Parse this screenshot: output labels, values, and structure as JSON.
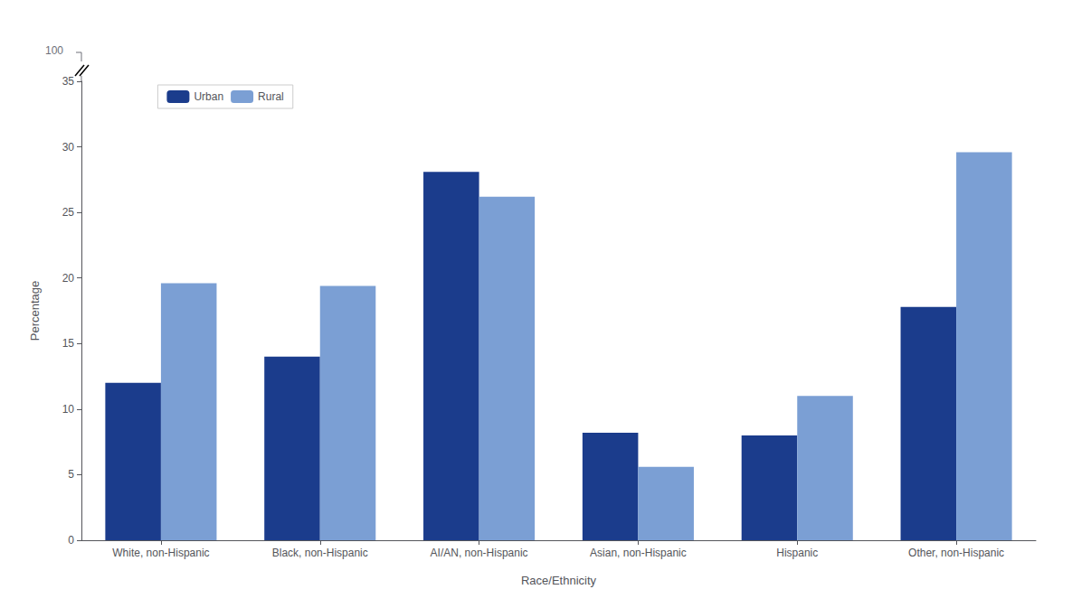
{
  "chart_data": {
    "type": "bar",
    "categories": [
      "White, non-Hispanic",
      "Black, non-Hispanic",
      "AI/AN, non-Hispanic",
      "Asian, non-Hispanic",
      "Hispanic",
      "Other, non-Hispanic"
    ],
    "series": [
      {
        "name": "Urban",
        "color": "#1B3C8C",
        "values": [
          12.0,
          14.0,
          28.1,
          8.2,
          8.0,
          17.8
        ]
      },
      {
        "name": "Rural",
        "color": "#7B9FD4",
        "values": [
          19.6,
          19.4,
          26.2,
          5.6,
          11.0,
          29.6
        ]
      }
    ],
    "xlabel": "Race/Ethnicity",
    "ylabel": "Percentage",
    "ylim": [
      0,
      35
    ],
    "yticks": [
      0,
      5,
      10,
      15,
      20,
      25,
      30,
      35
    ],
    "grid": false,
    "legend": "upper left",
    "annotations": [
      "100"
    ]
  }
}
